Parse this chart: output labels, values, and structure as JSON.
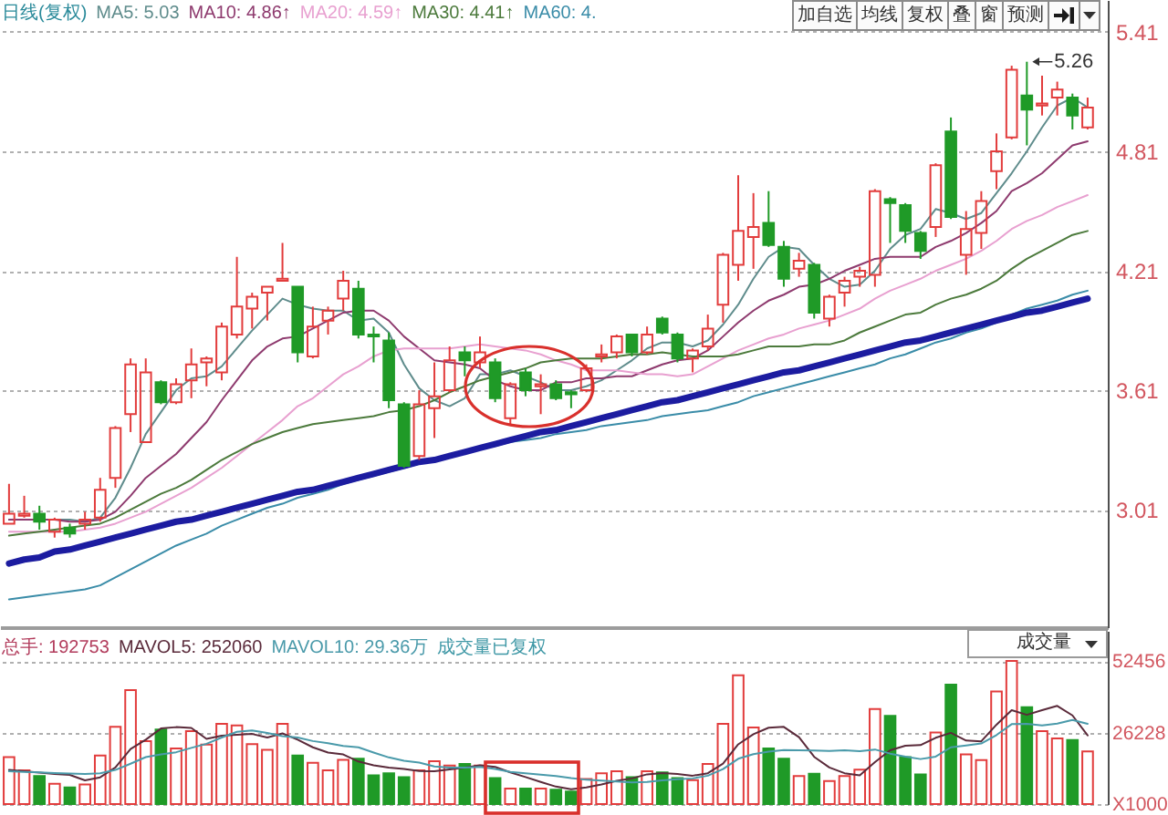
{
  "chart_data": [
    {
      "type": "candlestick",
      "title": "日线(复权)",
      "categories": [
        null,
        null,
        null,
        null,
        null,
        null,
        null,
        null,
        null,
        null,
        null,
        null,
        null,
        null,
        null,
        null,
        null,
        null,
        null,
        null,
        null,
        null,
        null,
        null,
        null,
        null,
        null,
        null,
        null,
        null,
        null,
        null,
        null,
        null,
        null,
        null,
        null,
        null,
        null,
        null,
        null,
        null,
        null,
        null,
        null,
        null,
        null,
        null,
        null,
        null,
        null,
        null,
        null,
        null,
        null,
        null,
        null,
        null,
        null,
        null,
        null,
        null,
        null,
        null,
        null,
        null,
        null,
        null,
        null,
        null,
        null,
        null
      ],
      "ohlc": [
        [
          2.94,
          3.14,
          2.94,
          2.99
        ],
        [
          2.98,
          3.08,
          2.97,
          2.99
        ],
        [
          2.99,
          3.03,
          2.91,
          2.95
        ],
        [
          2.9,
          2.97,
          2.87,
          2.96
        ],
        [
          2.92,
          2.94,
          2.87,
          2.89
        ],
        [
          2.94,
          3.0,
          2.91,
          2.96
        ],
        [
          2.97,
          3.17,
          2.95,
          3.11
        ],
        [
          3.17,
          3.43,
          3.12,
          3.42
        ],
        [
          3.49,
          3.77,
          3.4,
          3.74
        ],
        [
          3.35,
          3.77,
          3.35,
          3.7
        ],
        [
          3.65,
          3.66,
          3.54,
          3.55
        ],
        [
          3.55,
          3.67,
          3.54,
          3.64
        ],
        [
          3.66,
          3.82,
          3.57,
          3.74
        ],
        [
          3.75,
          3.78,
          3.63,
          3.77
        ],
        [
          3.7,
          3.95,
          3.66,
          3.93
        ],
        [
          3.89,
          4.28,
          3.87,
          4.03
        ],
        [
          4.02,
          4.1,
          3.92,
          4.08
        ],
        [
          4.1,
          4.13,
          3.96,
          4.13
        ],
        [
          4.16,
          4.35,
          4.16,
          4.17
        ],
        [
          4.13,
          4.13,
          3.75,
          3.8
        ],
        [
          3.78,
          4.03,
          3.77,
          3.93
        ],
        [
          3.96,
          4.03,
          3.89,
          4.01
        ],
        [
          4.07,
          4.21,
          4.01,
          4.16
        ],
        [
          4.12,
          4.16,
          3.87,
          3.89
        ],
        [
          3.89,
          3.93,
          3.75,
          3.88
        ],
        [
          3.86,
          3.9,
          3.52,
          3.56
        ],
        [
          3.54,
          3.55,
          3.22,
          3.23
        ],
        [
          3.28,
          3.61,
          3.26,
          3.54
        ],
        [
          3.52,
          3.75,
          3.37,
          3.58
        ],
        [
          3.61,
          3.83,
          3.6,
          3.76
        ],
        [
          3.8,
          3.83,
          3.68,
          3.76
        ],
        [
          3.75,
          3.88,
          3.72,
          3.8
        ],
        [
          3.75,
          3.77,
          3.55,
          3.57
        ],
        [
          3.47,
          3.65,
          3.44,
          3.64
        ],
        [
          3.7,
          3.72,
          3.58,
          3.61
        ],
        [
          3.63,
          3.69,
          3.49,
          3.64
        ],
        [
          3.64,
          3.66,
          3.56,
          3.57
        ],
        [
          3.6,
          3.61,
          3.52,
          3.59
        ],
        [
          3.61,
          3.74,
          3.6,
          3.72
        ],
        [
          3.78,
          3.84,
          3.75,
          3.79
        ],
        [
          3.8,
          3.89,
          3.77,
          3.88
        ],
        [
          3.89,
          3.89,
          3.78,
          3.8
        ],
        [
          3.8,
          3.93,
          3.79,
          3.89
        ],
        [
          3.97,
          3.98,
          3.89,
          3.9
        ],
        [
          3.89,
          3.9,
          3.75,
          3.77
        ],
        [
          3.77,
          3.82,
          3.7,
          3.81
        ],
        [
          3.83,
          3.99,
          3.81,
          3.92
        ],
        [
          4.04,
          4.3,
          3.95,
          4.29
        ],
        [
          4.24,
          4.69,
          4.16,
          4.41
        ],
        [
          4.38,
          4.6,
          4.22,
          4.43
        ],
        [
          4.45,
          4.61,
          4.33,
          4.34
        ],
        [
          4.33,
          4.36,
          4.13,
          4.17
        ],
        [
          4.22,
          4.3,
          4.18,
          4.26
        ],
        [
          4.24,
          4.25,
          3.97,
          4.0
        ],
        [
          3.97,
          4.09,
          3.93,
          4.08
        ],
        [
          4.1,
          4.18,
          4.03,
          4.16
        ],
        [
          4.18,
          4.23,
          4.13,
          4.21
        ],
        [
          4.19,
          4.62,
          4.13,
          4.61
        ],
        [
          4.57,
          4.58,
          4.35,
          4.55
        ],
        [
          4.54,
          4.55,
          4.35,
          4.41
        ],
        [
          4.4,
          4.41,
          4.27,
          4.31
        ],
        [
          4.43,
          4.75,
          4.38,
          4.74
        ],
        [
          4.91,
          4.98,
          4.47,
          4.48
        ],
        [
          4.29,
          4.51,
          4.19,
          4.42
        ],
        [
          4.4,
          4.61,
          4.32,
          4.56
        ],
        [
          4.71,
          4.9,
          4.62,
          4.81
        ],
        [
          4.88,
          5.24,
          4.87,
          5.22
        ],
        [
          5.09,
          5.26,
          4.84,
          5.02
        ],
        [
          5.04,
          5.19,
          4.99,
          5.05
        ],
        [
          5.08,
          5.16,
          4.99,
          5.12
        ],
        [
          5.08,
          5.1,
          4.92,
          4.99
        ],
        [
          4.93,
          5.08,
          4.92,
          5.03
        ]
      ],
      "colors": [
        "#e23c3c",
        "#e23c3c",
        "#1f9a27",
        "#e23c3c",
        "#1f9a27",
        "#e23c3c",
        "#e23c3c",
        "#e23c3c",
        "#e23c3c",
        "#e23c3c",
        "#1f9a27",
        "#e23c3c",
        "#e23c3c",
        "#e23c3c",
        "#e23c3c",
        "#e23c3c",
        "#e23c3c",
        "#e23c3c",
        "#e23c3c",
        "#1f9a27",
        "#e23c3c",
        "#e23c3c",
        "#e23c3c",
        "#1f9a27",
        "#1f9a27",
        "#1f9a27",
        "#1f9a27",
        "#e23c3c",
        "#e23c3c",
        "#e23c3c",
        "#1f9a27",
        "#e23c3c",
        "#1f9a27",
        "#e23c3c",
        "#1f9a27",
        "#e23c3c",
        "#1f9a27",
        "#1f9a27",
        "#e23c3c",
        "#e23c3c",
        "#e23c3c",
        "#1f9a27",
        "#e23c3c",
        "#1f9a27",
        "#1f9a27",
        "#e23c3c",
        "#e23c3c",
        "#e23c3c",
        "#e23c3c",
        "#e23c3c",
        "#1f9a27",
        "#1f9a27",
        "#e23c3c",
        "#1f9a27",
        "#e23c3c",
        "#e23c3c",
        "#e23c3c",
        "#e23c3c",
        "#1f9a27",
        "#1f9a27",
        "#1f9a27",
        "#e23c3c",
        "#1f9a27",
        "#e23c3c",
        "#e23c3c",
        "#e23c3c",
        "#e23c3c",
        "#1f9a27",
        "#e23c3c",
        "#e23c3c",
        "#1f9a27",
        "#e23c3c"
      ],
      "series": [
        {
          "type": "line",
          "name": "MA5: 5.03",
          "color": "#5f8c8c",
          "values": [
            2.96,
            2.96,
            2.96,
            2.96,
            2.96,
            2.95,
            2.97,
            3.07,
            3.22,
            3.39,
            3.5,
            3.61,
            3.67,
            3.68,
            3.73,
            3.82,
            3.91,
            3.99,
            4.07,
            4.04,
            4.02,
            4.01,
            4.01,
            3.96,
            3.97,
            3.9,
            3.74,
            3.62,
            3.56,
            3.53,
            3.57,
            3.69,
            3.69,
            3.71,
            3.68,
            3.65,
            3.61,
            3.61,
            3.63,
            3.66,
            3.71,
            3.76,
            3.82,
            3.85,
            3.85,
            3.83,
            3.86,
            3.94,
            4.04,
            4.17,
            4.28,
            4.33,
            4.32,
            4.24,
            4.17,
            4.13,
            4.14,
            4.21,
            4.32,
            4.39,
            4.42,
            4.52,
            4.5,
            4.47,
            4.5,
            4.6,
            4.7,
            4.81,
            4.93,
            5.04,
            5.08,
            5.03
          ]
        },
        {
          "type": "line",
          "name": "MA10: 4.86↑",
          "color": "#8e3a6e",
          "values": [
            2.96,
            2.96,
            2.96,
            2.96,
            2.95,
            2.95,
            2.96,
            3.0,
            3.08,
            3.17,
            3.23,
            3.29,
            3.37,
            3.45,
            3.56,
            3.66,
            3.76,
            3.83,
            3.87,
            3.88,
            3.92,
            3.96,
            4.0,
            4.01,
            4.01,
            3.96,
            3.88,
            3.82,
            3.76,
            3.75,
            3.74,
            3.72,
            3.66,
            3.63,
            3.61,
            3.61,
            3.65,
            3.65,
            3.67,
            3.67,
            3.68,
            3.68,
            3.71,
            3.74,
            3.76,
            3.77,
            3.81,
            3.88,
            3.95,
            4.01,
            4.06,
            4.09,
            4.13,
            4.14,
            4.17,
            4.21,
            4.24,
            4.27,
            4.28,
            4.28,
            4.28,
            4.33,
            4.36,
            4.4,
            4.45,
            4.51,
            4.61,
            4.65,
            4.7,
            4.77,
            4.84,
            4.86
          ]
        },
        {
          "type": "line",
          "name": "MA20: 4.59↑",
          "color": "#e8a0d0",
          "values": [
            2.9,
            2.9,
            2.9,
            2.9,
            2.9,
            2.91,
            2.92,
            2.94,
            2.97,
            3.0,
            3.04,
            3.08,
            3.12,
            3.17,
            3.22,
            3.28,
            3.34,
            3.4,
            3.46,
            3.53,
            3.57,
            3.63,
            3.69,
            3.73,
            3.78,
            3.81,
            3.82,
            3.82,
            3.82,
            3.82,
            3.83,
            3.84,
            3.83,
            3.82,
            3.81,
            3.79,
            3.76,
            3.74,
            3.71,
            3.71,
            3.71,
            3.7,
            3.69,
            3.69,
            3.68,
            3.69,
            3.73,
            3.77,
            3.81,
            3.84,
            3.87,
            3.89,
            3.92,
            3.94,
            3.96,
            3.99,
            4.02,
            4.07,
            4.11,
            4.14,
            4.17,
            4.21,
            4.24,
            4.27,
            4.31,
            4.36,
            4.42,
            4.46,
            4.49,
            4.53,
            4.56,
            4.59
          ]
        },
        {
          "type": "line",
          "name": "MA30: 4.41↑",
          "color": "#4c7a3c",
          "values": [
            2.88,
            2.89,
            2.9,
            2.91,
            2.92,
            2.93,
            2.94,
            2.97,
            3.01,
            3.05,
            3.09,
            3.12,
            3.16,
            3.21,
            3.26,
            3.3,
            3.34,
            3.37,
            3.4,
            3.42,
            3.44,
            3.45,
            3.46,
            3.47,
            3.48,
            3.5,
            3.51,
            3.53,
            3.56,
            3.6,
            3.63,
            3.66,
            3.68,
            3.7,
            3.72,
            3.75,
            3.76,
            3.77,
            3.77,
            3.77,
            3.78,
            3.79,
            3.79,
            3.8,
            3.79,
            3.78,
            3.78,
            3.78,
            3.79,
            3.81,
            3.83,
            3.83,
            3.83,
            3.84,
            3.84,
            3.86,
            3.9,
            3.93,
            3.96,
            3.99,
            4.0,
            4.04,
            4.07,
            4.09,
            4.12,
            4.16,
            4.22,
            4.27,
            4.31,
            4.35,
            4.39,
            4.41
          ]
        },
        {
          "type": "line",
          "name": "MA60: 4.",
          "color": "#3a8ca8",
          "values": [
            2.56,
            2.57,
            2.58,
            2.59,
            2.6,
            2.61,
            2.63,
            2.67,
            2.71,
            2.75,
            2.79,
            2.83,
            2.86,
            2.89,
            2.93,
            2.96,
            2.99,
            3.02,
            3.04,
            3.07,
            3.09,
            3.11,
            3.14,
            3.16,
            3.18,
            3.2,
            3.22,
            3.24,
            3.26,
            3.28,
            3.3,
            3.32,
            3.33,
            3.35,
            3.36,
            3.37,
            3.39,
            3.4,
            3.41,
            3.43,
            3.44,
            3.45,
            3.46,
            3.48,
            3.49,
            3.5,
            3.51,
            3.53,
            3.55,
            3.58,
            3.6,
            3.62,
            3.64,
            3.66,
            3.68,
            3.7,
            3.72,
            3.74,
            3.77,
            3.79,
            3.82,
            3.85,
            3.87,
            3.9,
            3.92,
            3.95,
            3.99,
            4.02,
            4.04,
            4.06,
            4.09,
            4.11
          ]
        },
        {
          "type": "line",
          "color": "#1c1ca0",
          "values": [
            2.74,
            2.76,
            2.77,
            2.8,
            2.81,
            2.83,
            2.85,
            2.87,
            2.89,
            2.91,
            2.93,
            2.95,
            2.96,
            2.98,
            3.0,
            3.02,
            3.04,
            3.06,
            3.08,
            3.1,
            3.11,
            3.13,
            3.15,
            3.17,
            3.19,
            3.21,
            3.23,
            3.25,
            3.26,
            3.28,
            3.3,
            3.32,
            3.34,
            3.36,
            3.38,
            3.4,
            3.41,
            3.43,
            3.45,
            3.47,
            3.49,
            3.51,
            3.53,
            3.55,
            3.56,
            3.58,
            3.6,
            3.62,
            3.64,
            3.66,
            3.68,
            3.7,
            3.71,
            3.73,
            3.75,
            3.77,
            3.79,
            3.81,
            3.83,
            3.85,
            3.86,
            3.88,
            3.9,
            3.92,
            3.94,
            3.96,
            3.98,
            4.0,
            4.01,
            4.03,
            4.05,
            4.07
          ]
        }
      ],
      "ylim": [
        2.42,
        5.57
      ],
      "yticks": [
        3.01,
        3.61,
        4.21,
        4.81,
        5.41
      ],
      "grid": "y",
      "tick_labels": "y",
      "legend": "top left",
      "annotations": [
        "加自选",
        "均线",
        "复权",
        "叠",
        "窗",
        "预测",
        "5.26"
      ]
    },
    {
      "type": "bar",
      "categories": [
        null,
        null,
        null,
        null,
        null,
        null,
        null,
        null,
        null,
        null,
        null,
        null,
        null,
        null,
        null,
        null,
        null,
        null,
        null,
        null,
        null,
        null,
        null,
        null,
        null,
        null,
        null,
        null,
        null,
        null,
        null,
        null,
        null,
        null,
        null,
        null,
        null,
        null,
        null,
        null,
        null,
        null,
        null,
        null,
        null,
        null,
        null,
        null,
        null,
        null,
        null,
        null,
        null,
        null,
        null,
        null,
        null,
        null,
        null,
        null,
        null,
        null,
        null,
        null,
        null,
        null,
        null,
        null,
        null,
        null,
        null,
        null
      ],
      "series": [
        {
          "type": "bar",
          "values": [
            17200,
            12400,
            10300,
            7400,
            6100,
            7200,
            17800,
            28300,
            41800,
            23100,
            27300,
            20400,
            26700,
            21800,
            29400,
            28800,
            22000,
            19900,
            29400,
            17800,
            15100,
            12400,
            16200,
            16600,
            10500,
            11300,
            9900,
            12400,
            15700,
            14100,
            14700,
            14100,
            9500,
            5700,
            5700,
            5700,
            5300,
            4600,
            9200,
            11300,
            12000,
            9900,
            12000,
            11600,
            9500,
            8800,
            14700,
            29400,
            47200,
            28100,
            20400,
            16600,
            10300,
            11100,
            8400,
            10300,
            12600,
            34800,
            32300,
            17200,
            10900,
            26200,
            43800,
            18200,
            16100,
            41300,
            52500,
            35500,
            26700,
            24100,
            23500,
            19300
          ],
          "colors": [
            "#e23c3c",
            "#e23c3c",
            "#1f9a27",
            "#e23c3c",
            "#1f9a27",
            "#e23c3c",
            "#e23c3c",
            "#e23c3c",
            "#e23c3c",
            "#e23c3c",
            "#1f9a27",
            "#e23c3c",
            "#e23c3c",
            "#e23c3c",
            "#e23c3c",
            "#e23c3c",
            "#e23c3c",
            "#e23c3c",
            "#e23c3c",
            "#1f9a27",
            "#e23c3c",
            "#e23c3c",
            "#e23c3c",
            "#1f9a27",
            "#1f9a27",
            "#1f9a27",
            "#1f9a27",
            "#e23c3c",
            "#e23c3c",
            "#e23c3c",
            "#1f9a27",
            "#e23c3c",
            "#1f9a27",
            "#e23c3c",
            "#1f9a27",
            "#e23c3c",
            "#1f9a27",
            "#1f9a27",
            "#e23c3c",
            "#e23c3c",
            "#e23c3c",
            "#1f9a27",
            "#e23c3c",
            "#1f9a27",
            "#1f9a27",
            "#e23c3c",
            "#e23c3c",
            "#e23c3c",
            "#e23c3c",
            "#e23c3c",
            "#1f9a27",
            "#1f9a27",
            "#e23c3c",
            "#1f9a27",
            "#e23c3c",
            "#e23c3c",
            "#e23c3c",
            "#e23c3c",
            "#1f9a27",
            "#1f9a27",
            "#1f9a27",
            "#e23c3c",
            "#1f9a27",
            "#e23c3c",
            "#e23c3c",
            "#e23c3c",
            "#e23c3c",
            "#1f9a27",
            "#e23c3c",
            "#e23c3c",
            "#1f9a27",
            "#e23c3c"
          ]
        },
        {
          "type": "line",
          "name": "MAVOL5: 252060",
          "color": "#5a2a3a",
          "values": [
            12500,
            12000,
            11500,
            11000,
            10700,
            8700,
            9800,
            13400,
            20200,
            23600,
            27700,
            28200,
            27900,
            23900,
            25100,
            25400,
            25700,
            24400,
            25900,
            23600,
            20800,
            18900,
            18200,
            15600,
            14200,
            13400,
            12900,
            12100,
            12000,
            12700,
            13400,
            14200,
            13600,
            11600,
            9900,
            8100,
            6400,
            5400,
            6100,
            7200,
            8500,
            9400,
            10900,
            11400,
            11000,
            10400,
            11300,
            14800,
            21900,
            25600,
            28000,
            28300,
            24500,
            17300,
            13400,
            11300,
            10500,
            15400,
            19700,
            21400,
            21600,
            24300,
            26100,
            23300,
            23000,
            29100,
            34400,
            32700,
            34400,
            36000,
            32500,
            25200
          ]
        },
        {
          "type": "line",
          "name": "MAVOL10: 29.36万",
          "color": "#4a9aaa",
          "values": [
            12000,
            11800,
            11600,
            11400,
            11200,
            11000,
            11300,
            12500,
            14800,
            17200,
            18200,
            19000,
            20600,
            22100,
            24400,
            26500,
            27000,
            26100,
            24900,
            24400,
            23100,
            22300,
            21300,
            20800,
            18900,
            17100,
            15900,
            15200,
            13800,
            13400,
            13400,
            13600,
            12900,
            11800,
            11300,
            10800,
            10300,
            9500,
            8900,
            8600,
            8300,
            7900,
            8100,
            8700,
            9100,
            9400,
            10400,
            12800,
            16600,
            18300,
            19200,
            19800,
            19700,
            19600,
            19500,
            19700,
            19400,
            20000,
            18500,
            17400,
            16500,
            17400,
            20800,
            21500,
            22200,
            25300,
            29300,
            29400,
            28800,
            29500,
            30800,
            29400
          ]
        }
      ],
      "ylim": [
        0,
        63500
      ],
      "yticks": [
        {
          "value": 0,
          "label": "X1000"
        },
        26228,
        52456
      ],
      "grid": "y",
      "tick_labels": "y",
      "legend": "top left",
      "annotations": [
        "总手: 192753",
        "成交量已复权",
        "成交量"
      ]
    }
  ]
}
